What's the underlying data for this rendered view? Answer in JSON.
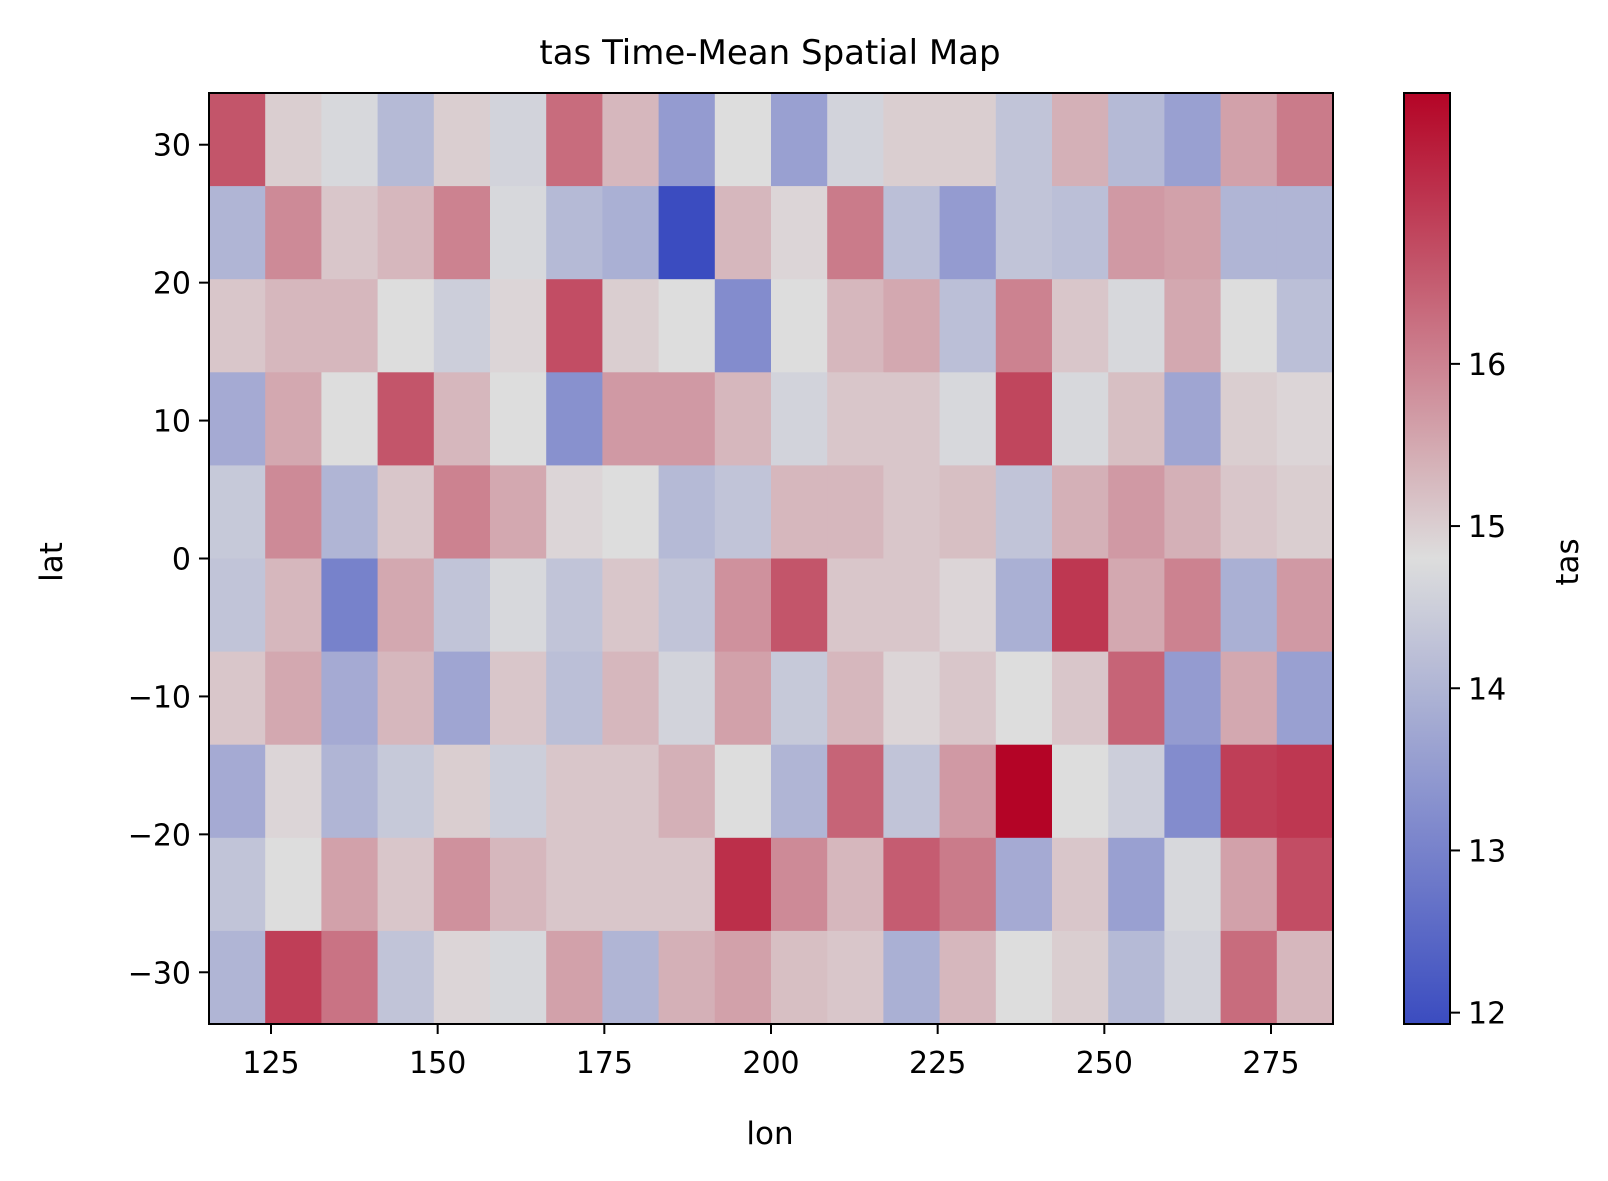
{
  "chart_data": {
    "type": "heatmap",
    "title": "tas Time-Mean Spatial Map",
    "xlabel": "lon",
    "ylabel": "lat",
    "colorbar_label": "tas",
    "colormap": "coolwarm",
    "colormap_low": "#3b4cc0",
    "colormap_mid": "#dddddd",
    "colormap_high": "#b40426",
    "vmin": 11.93,
    "vmax": 17.67,
    "xlim": [
      115.7,
      284.3
    ],
    "ylim": [
      -33.75,
      33.75
    ],
    "lon_centers": [
      120,
      128.4,
      136.8,
      145.3,
      153.7,
      162.1,
      170.5,
      178.9,
      187.4,
      195.8,
      204.2,
      212.6,
      221.1,
      229.5,
      237.9,
      246.3,
      254.7,
      263.2,
      271.6,
      280
    ],
    "lat_centers": [
      30,
      23.3,
      16.7,
      10,
      3.3,
      -3.3,
      -10,
      -16.7,
      -23.3,
      -30
    ],
    "values": [
      [
        16.6,
        15.0,
        14.7,
        14.1,
        15.0,
        14.6,
        16.3,
        15.3,
        13.5,
        14.8,
        13.6,
        14.6,
        15.0,
        15.0,
        14.3,
        15.4,
        14.1,
        13.6,
        15.6,
        16.1
      ],
      [
        14.0,
        15.9,
        15.1,
        15.3,
        16.0,
        14.7,
        14.1,
        13.9,
        11.93,
        15.3,
        14.9,
        16.1,
        14.2,
        13.5,
        14.3,
        14.2,
        15.7,
        15.6,
        14.0,
        14.0
      ],
      [
        15.1,
        15.3,
        15.3,
        14.8,
        14.5,
        14.9,
        16.7,
        15.0,
        14.8,
        13.2,
        14.8,
        15.3,
        15.5,
        14.2,
        16.0,
        15.1,
        14.7,
        15.5,
        14.8,
        14.2
      ],
      [
        13.8,
        15.5,
        14.8,
        16.6,
        15.3,
        14.8,
        13.3,
        15.7,
        15.7,
        15.3,
        14.6,
        15.1,
        15.1,
        14.7,
        16.8,
        14.7,
        15.2,
        13.7,
        15.0,
        14.9
      ],
      [
        14.4,
        15.9,
        14.0,
        15.1,
        16.0,
        15.5,
        14.9,
        14.8,
        14.1,
        14.3,
        15.3,
        15.3,
        15.1,
        15.2,
        14.3,
        15.4,
        15.7,
        15.4,
        15.1,
        15.0
      ],
      [
        14.3,
        15.3,
        13.0,
        15.5,
        14.3,
        14.7,
        14.3,
        15.1,
        14.3,
        15.8,
        16.6,
        15.1,
        15.1,
        14.9,
        13.9,
        17.0,
        15.5,
        16.0,
        13.9,
        15.7
      ],
      [
        15.1,
        15.5,
        13.8,
        15.3,
        13.7,
        15.1,
        14.2,
        15.3,
        14.6,
        15.6,
        14.4,
        15.3,
        14.9,
        15.1,
        14.8,
        15.1,
        16.4,
        13.5,
        15.5,
        13.6
      ],
      [
        13.8,
        14.9,
        14.0,
        14.4,
        15.0,
        14.5,
        15.1,
        15.1,
        15.4,
        14.8,
        14.0,
        16.4,
        14.3,
        15.7,
        17.67,
        14.8,
        14.5,
        13.2,
        16.9,
        17.0
      ],
      [
        14.3,
        14.8,
        15.6,
        15.1,
        15.8,
        15.3,
        15.1,
        15.1,
        15.1,
        17.1,
        15.9,
        15.3,
        16.5,
        16.1,
        13.8,
        15.1,
        13.6,
        14.7,
        15.6,
        16.7
      ],
      [
        14.0,
        16.9,
        16.2,
        14.3,
        14.9,
        14.7,
        15.6,
        14.0,
        15.4,
        15.6,
        15.2,
        15.1,
        13.9,
        15.3,
        14.8,
        15.0,
        14.1,
        14.6,
        16.3,
        15.3
      ]
    ],
    "x_ticks": [
      125,
      150,
      175,
      200,
      225,
      250,
      275
    ],
    "x_tick_labels": [
      "125",
      "150",
      "175",
      "200",
      "225",
      "250",
      "275"
    ],
    "y_ticks": [
      30,
      20,
      10,
      0,
      -10,
      -20,
      -30
    ],
    "y_tick_labels": [
      "30",
      "20",
      "10",
      "0",
      "−10",
      "−20",
      "−30"
    ],
    "colorbar_ticks": [
      12,
      13,
      14,
      15,
      16
    ],
    "colorbar_tick_labels": [
      "12",
      "13",
      "14",
      "15",
      "16"
    ],
    "grid": false
  }
}
